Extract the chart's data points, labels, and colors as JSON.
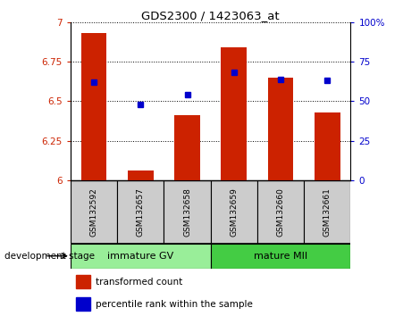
{
  "title": "GDS2300 / 1423063_at",
  "samples": [
    "GSM132592",
    "GSM132657",
    "GSM132658",
    "GSM132659",
    "GSM132660",
    "GSM132661"
  ],
  "bar_values": [
    6.93,
    6.06,
    6.41,
    6.84,
    6.65,
    6.43
  ],
  "bar_base": 6.0,
  "percentile_values": [
    6.62,
    6.48,
    6.54,
    6.68,
    6.64,
    6.63
  ],
  "bar_color": "#cc2200",
  "percentile_color": "#0000cc",
  "ylim_left": [
    6.0,
    7.0
  ],
  "ylim_right": [
    0,
    100
  ],
  "yticks_left": [
    6.0,
    6.25,
    6.5,
    6.75,
    7.0
  ],
  "yticks_left_labels": [
    "6",
    "6.25",
    "6.5",
    "6.75",
    "7"
  ],
  "yticks_right": [
    0,
    25,
    50,
    75,
    100
  ],
  "yticks_right_labels": [
    "0",
    "25",
    "50",
    "75",
    "100%"
  ],
  "groups": [
    {
      "label": "immature GV",
      "start": 0,
      "end": 2,
      "color": "#99ee99"
    },
    {
      "label": "mature MII",
      "start": 3,
      "end": 5,
      "color": "#44cc44"
    }
  ],
  "group_label_prefix": "development stage",
  "legend_bar_label": "transformed count",
  "legend_pct_label": "percentile rank within the sample",
  "tick_color_left": "#cc2200",
  "tick_color_right": "#0000cc",
  "sample_box_color": "#cccccc",
  "bar_width": 0.55
}
